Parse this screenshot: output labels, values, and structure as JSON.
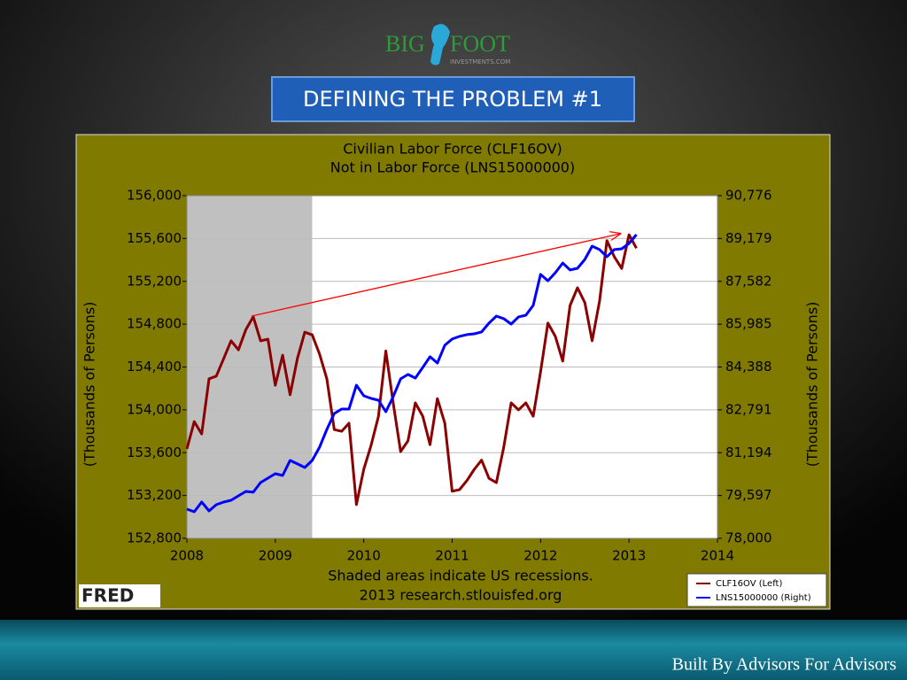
{
  "slide": {
    "logo": {
      "left": "BIG",
      "right": "FOOT",
      "tagline": "INVESTMENTS.COM"
    },
    "title": "DEFINING THE PROBLEM #1",
    "footer": "Built By Advisors For Advisors"
  },
  "chart_data": {
    "type": "line",
    "title": "Civilian Labor Force (CLF16OV)",
    "subtitle": "Not in Labor Force (LNS15000000)",
    "y_label": "(Thousands of Persons)",
    "y2_label": "(Thousands of Persons)",
    "notes": [
      "Shaded areas indicate US recessions.",
      "2013 research.stlouisfed.org"
    ],
    "source_logo": "FRED",
    "x": [
      2008.0,
      2008.083,
      2008.167,
      2008.25,
      2008.333,
      2008.417,
      2008.5,
      2008.583,
      2008.667,
      2008.75,
      2008.833,
      2008.917,
      2009.0,
      2009.083,
      2009.167,
      2009.25,
      2009.333,
      2009.417,
      2009.5,
      2009.583,
      2009.667,
      2009.75,
      2009.833,
      2009.917,
      2010.0,
      2010.083,
      2010.167,
      2010.25,
      2010.333,
      2010.417,
      2010.5,
      2010.583,
      2010.667,
      2010.75,
      2010.833,
      2010.917,
      2011.0,
      2011.083,
      2011.167,
      2011.25,
      2011.333,
      2011.417,
      2011.5,
      2011.583,
      2011.667,
      2011.75,
      2011.833,
      2011.917,
      2012.0,
      2012.083,
      2012.167,
      2012.25,
      2012.333,
      2012.417,
      2012.5,
      2012.583,
      2012.667,
      2012.75,
      2012.833,
      2012.917,
      2013.0,
      2013.083
    ],
    "series": [
      {
        "name": "CLF16OV (Left)",
        "color": "#8b0000",
        "axis": "y",
        "values": [
          153635,
          153890,
          153775,
          154290,
          154315,
          154480,
          154645,
          154560,
          154750,
          154870,
          154645,
          154660,
          154230,
          154510,
          154140,
          154480,
          154725,
          154700,
          154520,
          154290,
          153815,
          153800,
          153875,
          153115,
          153445,
          153670,
          153940,
          154550,
          154065,
          153610,
          153710,
          154065,
          153940,
          153675,
          154105,
          153875,
          153240,
          153255,
          153340,
          153445,
          153530,
          153360,
          153320,
          153650,
          154065,
          154000,
          154065,
          153940,
          154355,
          154810,
          154685,
          154455,
          154975,
          155140,
          155000,
          154645,
          155015,
          155580,
          155430,
          155320,
          155635,
          155510
        ]
      },
      {
        "name": "LNS15000000 (Right)",
        "color": "#0000ff",
        "axis": "y2",
        "values": [
          79090,
          78990,
          79355,
          79025,
          79255,
          79355,
          79420,
          79585,
          79750,
          79720,
          80080,
          80245,
          80410,
          80345,
          80905,
          80775,
          80640,
          80905,
          81400,
          82060,
          82655,
          82820,
          82820,
          83710,
          83315,
          83215,
          83150,
          82720,
          83280,
          83945,
          84110,
          83975,
          84370,
          84770,
          84535,
          85200,
          85430,
          85530,
          85595,
          85625,
          85695,
          86025,
          86285,
          86190,
          85990,
          86255,
          86320,
          86685,
          87840,
          87605,
          87905,
          88265,
          88005,
          88070,
          88400,
          88895,
          88765,
          88500,
          88765,
          88795,
          88995,
          89325
        ]
      }
    ],
    "recessions": [
      [
        2008.0,
        2009.417
      ]
    ],
    "xlim": [
      2008,
      2014
    ],
    "xticks": [
      2008,
      2009,
      2010,
      2011,
      2012,
      2013,
      2014
    ],
    "ylim": [
      152800,
      156000
    ],
    "yticks": [
      {
        "value": 152800,
        "label": "152,800"
      },
      {
        "value": 153200,
        "label": "153,200"
      },
      {
        "value": 153600,
        "label": "153,600"
      },
      {
        "value": 154000,
        "label": "154,000"
      },
      {
        "value": 154400,
        "label": "154,400"
      },
      {
        "value": 154800,
        "label": "154,800"
      },
      {
        "value": 155200,
        "label": "155,200"
      },
      {
        "value": 155600,
        "label": "155,600"
      },
      {
        "value": 156000,
        "label": "156,000"
      }
    ],
    "y2lim": [
      78000,
      90776
    ],
    "y2ticks": [
      {
        "value": 78000,
        "label": "78,000"
      },
      {
        "value": 79597,
        "label": "79,597"
      },
      {
        "value": 81194,
        "label": "81,194"
      },
      {
        "value": 82791,
        "label": "82,791"
      },
      {
        "value": 84388,
        "label": "84,388"
      },
      {
        "value": 85985,
        "label": "85,985"
      },
      {
        "value": 87582,
        "label": "87,582"
      },
      {
        "value": 89179,
        "label": "89,179"
      },
      {
        "value": 90776,
        "label": "90,776"
      }
    ],
    "grid": true,
    "legend": "lower right"
  }
}
